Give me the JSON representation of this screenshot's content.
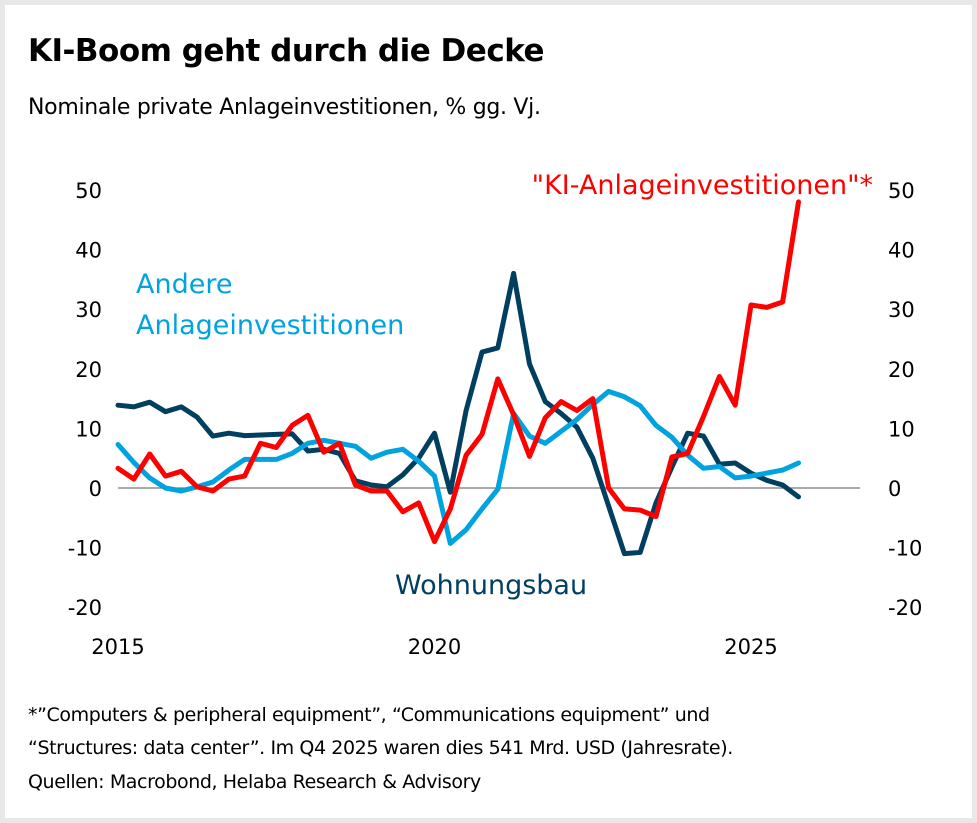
{
  "header": {
    "title": "KI-Boom geht durch die Decke",
    "subtitle": "Nominale private Anlageinvestitionen, % gg. Vj."
  },
  "footer": {
    "lines": [
      "*”Computers & peripheral equipment”, “Communications equipment” und",
      "“Structures: data center”. Im Q4 2025 waren dies 541 Mrd. USD (Jahresrate).",
      "Quellen: Macrobond, Helaba Research & Advisory"
    ]
  },
  "chart_data": {
    "type": "line",
    "title": "KI-Boom geht durch die Decke",
    "subtitle": "Nominale private Anlageinvestitionen, % gg. Vj.",
    "xlabel": "",
    "ylabel": "% gg. Vj.",
    "frequency": "quarterly",
    "x_start": "2015Q1",
    "x_end": "2025Q4",
    "xlim": [
      2015,
      2026.75
    ],
    "ylim": [
      -20,
      50
    ],
    "y_ticks": [
      50,
      40,
      30,
      20,
      10,
      0,
      -10,
      -20
    ],
    "y_tick_labels": [
      "50",
      "40",
      "30",
      "20",
      "10",
      "0",
      "-10",
      "-20"
    ],
    "x_ticks": [
      2015,
      2020,
      2025
    ],
    "x_tick_labels": [
      "2015",
      "2020",
      "2025"
    ],
    "dual_y_axis": true,
    "grid": false,
    "zero_line": true,
    "legend": "inline labels",
    "series": [
      {
        "name": "Wohnungsbau",
        "label": "Wohnungsbau",
        "color": "#003f5f",
        "values": [
          13.9,
          13.6,
          14.4,
          12.8,
          13.6,
          11.9,
          8.7,
          9.2,
          8.8,
          8.9,
          9.0,
          9.1,
          6.2,
          6.5,
          5.8,
          1.2,
          0.5,
          0.2,
          2.2,
          5.0,
          9.2,
          -0.7,
          13.0,
          22.8,
          23.5,
          36.0,
          20.8,
          14.5,
          12.5,
          10.2,
          5.0,
          -3.0,
          -11.0,
          -10.8,
          -2.5,
          3.5,
          9.2,
          8.7,
          4.0,
          4.2,
          2.5,
          1.3,
          0.5,
          -1.5
        ]
      },
      {
        "name": "Andere Anlageinvestitionen",
        "label_lines": [
          "Andere",
          "Anlageinvestitionen"
        ],
        "color": "#00a3e0",
        "values": [
          7.3,
          4.3,
          1.7,
          0.0,
          -0.5,
          0.2,
          1.0,
          3.0,
          4.8,
          4.8,
          4.8,
          5.8,
          7.5,
          8.0,
          7.5,
          7.0,
          5.0,
          6.0,
          6.5,
          4.5,
          2.0,
          -9.3,
          -7.0,
          -3.5,
          -0.2,
          12.5,
          8.7,
          7.5,
          9.5,
          11.5,
          14.0,
          16.2,
          15.3,
          13.8,
          10.5,
          8.5,
          5.5,
          3.3,
          3.6,
          1.7,
          2.0,
          2.5,
          3.0,
          4.2
        ]
      },
      {
        "name": "\"KI-Anlageinvestitionen\"*",
        "label": "\"KI-Anlageinvestitionen\"*",
        "color": "#ff0000",
        "values": [
          3.3,
          1.5,
          5.7,
          2.0,
          2.8,
          0.2,
          -0.5,
          1.5,
          2.0,
          7.5,
          6.8,
          10.5,
          12.2,
          6.0,
          7.5,
          0.5,
          -0.5,
          -0.5,
          -4.0,
          -2.5,
          -9.0,
          -3.5,
          5.5,
          9.0,
          18.3,
          12.3,
          5.3,
          11.8,
          14.5,
          13.0,
          15.0,
          0.0,
          -3.5,
          -3.7,
          -4.8,
          5.2,
          5.8,
          12.0,
          18.7,
          13.9,
          30.7,
          30.3,
          31.2,
          48.0
        ]
      }
    ]
  }
}
